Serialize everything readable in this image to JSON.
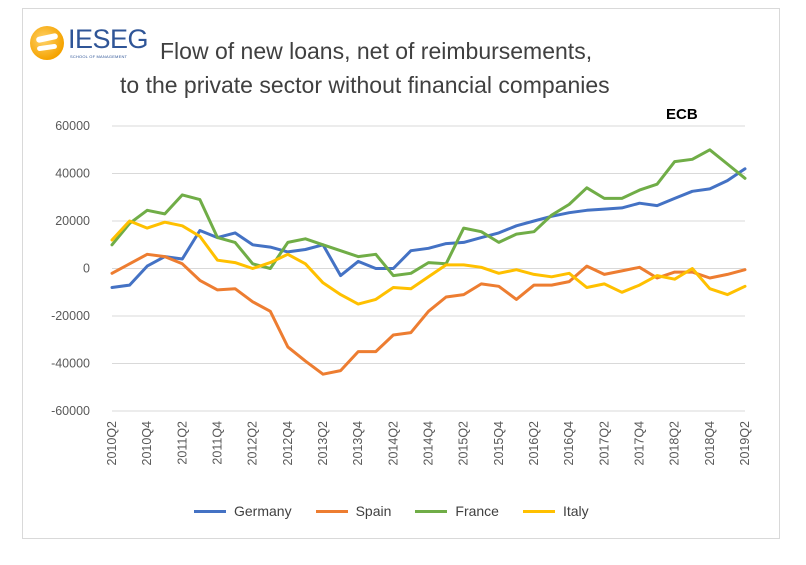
{
  "logo": {
    "text": "IESEG",
    "subtitle": "SCHOOL OF MANAGEMENT"
  },
  "title_line1": "Flow of new loans, net of reimbursements,",
  "title_line2": "to the private sector without financial companies",
  "source_badge": "ECB",
  "chart_data": {
    "type": "line",
    "title": "Flow of new loans, net of reimbursements, to the private sector without financial companies",
    "ylim": [
      -60000,
      60000
    ],
    "yticks": [
      60000,
      40000,
      20000,
      0,
      -20000,
      -40000,
      -60000
    ],
    "ytick_labels": [
      "60000",
      "40000",
      "20000",
      "0",
      "-20000",
      "-40000",
      "-60000"
    ],
    "xtick_labels": [
      "2010Q2",
      "2010Q4",
      "2011Q2",
      "2011Q4",
      "2012Q2",
      "2012Q4",
      "2013Q2",
      "2013Q4",
      "2014Q2",
      "2014Q4",
      "2015Q2",
      "2015Q4",
      "2016Q2",
      "2016Q4",
      "2017Q2",
      "2017Q4",
      "2018Q2",
      "2018Q4",
      "2019Q2"
    ],
    "x": [
      "2010Q2",
      "2010Q3",
      "2010Q4",
      "2011Q1",
      "2011Q2",
      "2011Q3",
      "2011Q4",
      "2012Q1",
      "2012Q2",
      "2012Q3",
      "2012Q4",
      "2013Q1",
      "2013Q2",
      "2013Q3",
      "2013Q4",
      "2014Q1",
      "2014Q2",
      "2014Q3",
      "2014Q4",
      "2015Q1",
      "2015Q2",
      "2015Q3",
      "2015Q4",
      "2016Q1",
      "2016Q2",
      "2016Q3",
      "2016Q4",
      "2017Q1",
      "2017Q2",
      "2017Q3",
      "2017Q4",
      "2018Q1",
      "2018Q2",
      "2018Q3",
      "2018Q4",
      "2019Q1",
      "2019Q2"
    ],
    "grid": true,
    "legend_position": "bottom",
    "series": [
      {
        "name": "Germany",
        "color": "#4472c4",
        "values": [
          -8000,
          -7000,
          1000,
          5000,
          4000,
          16000,
          13000,
          15000,
          10000,
          9000,
          7000,
          8000,
          10000,
          -3000,
          3000,
          0,
          0,
          7500,
          8500,
          10500,
          11000,
          13000,
          15000,
          18000,
          20000,
          22000,
          23500,
          24500,
          25000,
          25500,
          27500,
          26500,
          29500,
          32500,
          33500,
          37000,
          42000
        ]
      },
      {
        "name": "Spain",
        "color": "#ed7d31",
        "values": [
          -2000,
          2000,
          6000,
          5000,
          2000,
          -5000,
          -9000,
          -8500,
          -14000,
          -18000,
          -33000,
          -39000,
          -44500,
          -43000,
          -35000,
          -35000,
          -28000,
          -27000,
          -18000,
          -12000,
          -11000,
          -6500,
          -7500,
          -13000,
          -7000,
          -7000,
          -5500,
          1000,
          -2500,
          -1000,
          500,
          -4000,
          -1500,
          -1500,
          -4000,
          -2500,
          -500
        ]
      },
      {
        "name": "France",
        "color": "#70ad47",
        "values": [
          10000,
          19000,
          24500,
          23000,
          31000,
          29000,
          13000,
          11000,
          2000,
          0,
          11000,
          12500,
          10000,
          7500,
          5000,
          6000,
          -3000,
          -2000,
          2500,
          2000,
          17000,
          15500,
          11000,
          14500,
          15500,
          22500,
          27000,
          34000,
          29500,
          29500,
          33000,
          35500,
          45000,
          46000,
          50000,
          44000,
          38000
        ]
      },
      {
        "name": "Italy",
        "color": "#ffc000",
        "values": [
          12000,
          20000,
          17000,
          19500,
          18000,
          13500,
          3500,
          2500,
          0,
          2500,
          6000,
          2000,
          -6000,
          -11000,
          -15000,
          -13000,
          -8000,
          -8500,
          -3500,
          1500,
          1500,
          500,
          -2000,
          -500,
          -2500,
          -3500,
          -2000,
          -8000,
          -6500,
          -10000,
          -7000,
          -3000,
          -4500,
          0,
          -8500,
          -11000,
          -7500
        ]
      }
    ]
  }
}
